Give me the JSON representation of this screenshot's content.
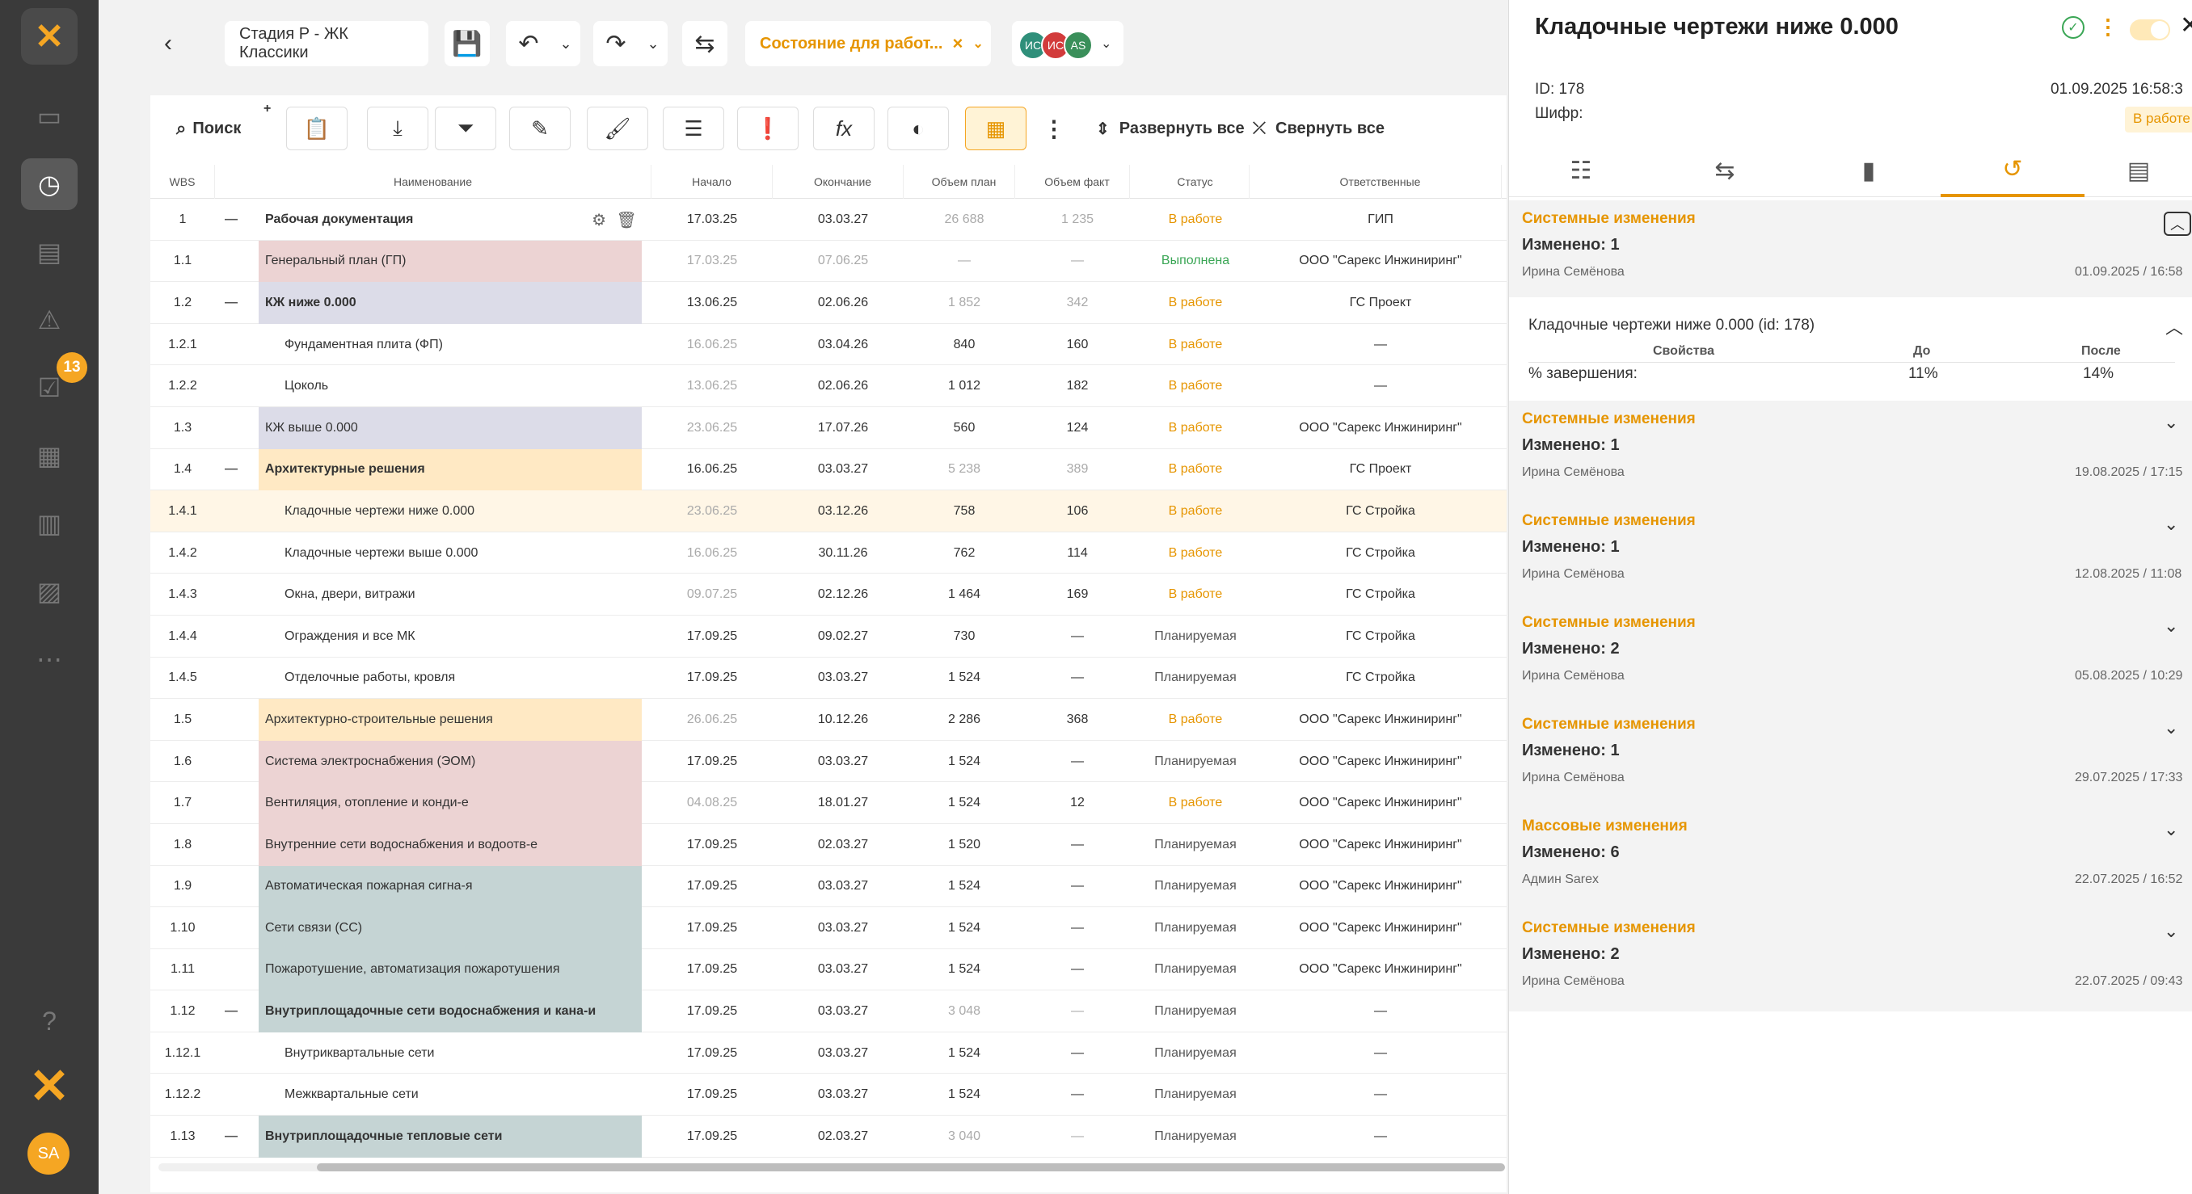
{
  "sidebar": {
    "badge": "13",
    "avatar": "SA"
  },
  "topbar": {
    "project_title": "Стадия Р - ЖК Классики",
    "state_label": "Состояние для работ...",
    "state_clear": "×",
    "avatars": [
      {
        "initials": "ИС",
        "color": "#2f8f7a"
      },
      {
        "initials": "ИС",
        "color": "#d23b3b"
      },
      {
        "initials": "AS",
        "color": "#3a8f5a"
      }
    ]
  },
  "toolbar": {
    "search_label": "Поиск",
    "expand_label": "Развернуть все",
    "collapse_label": "Свернуть все"
  },
  "table": {
    "headers": {
      "wbs": "WBS",
      "name": "Наименование",
      "start": "Начало",
      "end": "Окончание",
      "plan": "Объем план",
      "fact": "Объем факт",
      "status": "Статус",
      "resp": "Ответственные"
    },
    "rows": [
      {
        "wbs": "1",
        "toggle": "—",
        "name": "Рабочая документация",
        "start": "17.03.25",
        "end": "03.03.27",
        "plan": "26 688",
        "fact": "1 235",
        "status": "В работе",
        "resp": "ГИП"
      },
      {
        "wbs": "1.1",
        "toggle": "",
        "name": "Генеральный план (ГП)",
        "start": "17.03.25",
        "end": "07.06.25",
        "plan": "—",
        "fact": "—",
        "status": "Выполнена",
        "resp": "ООО \"Сарекс Инжиниринг\""
      },
      {
        "wbs": "1.2",
        "toggle": "—",
        "name": "КЖ ниже 0.000",
        "start": "13.06.25",
        "end": "02.06.26",
        "plan": "1 852",
        "fact": "342",
        "status": "В работе",
        "resp": "ГС Проект"
      },
      {
        "wbs": "1.2.1",
        "toggle": "",
        "name": "Фундаментная плита (ФП)",
        "start": "16.06.25",
        "end": "03.04.26",
        "plan": "840",
        "fact": "160",
        "status": "В работе",
        "resp": "—"
      },
      {
        "wbs": "1.2.2",
        "toggle": "",
        "name": "Цоколь",
        "start": "13.06.25",
        "end": "02.06.26",
        "plan": "1 012",
        "fact": "182",
        "status": "В работе",
        "resp": "—"
      },
      {
        "wbs": "1.3",
        "toggle": "",
        "name": "КЖ выше 0.000",
        "start": "23.06.25",
        "end": "17.07.26",
        "plan": "560",
        "fact": "124",
        "status": "В работе",
        "resp": "ООО \"Сарекс Инжиниринг\""
      },
      {
        "wbs": "1.4",
        "toggle": "—",
        "name": "Архитектурные решения",
        "start": "16.06.25",
        "end": "03.03.27",
        "plan": "5 238",
        "fact": "389",
        "status": "В работе",
        "resp": "ГС Проект"
      },
      {
        "wbs": "1.4.1",
        "toggle": "",
        "name": "Кладочные чертежи ниже 0.000",
        "start": "23.06.25",
        "end": "03.12.26",
        "plan": "758",
        "fact": "106",
        "status": "В работе",
        "resp": "ГС Стройка"
      },
      {
        "wbs": "1.4.2",
        "toggle": "",
        "name": "Кладочные чертежи выше 0.000",
        "start": "16.06.25",
        "end": "30.11.26",
        "plan": "762",
        "fact": "114",
        "status": "В работе",
        "resp": "ГС Стройка"
      },
      {
        "wbs": "1.4.3",
        "toggle": "",
        "name": "Окна, двери, витражи",
        "start": "09.07.25",
        "end": "02.12.26",
        "plan": "1 464",
        "fact": "169",
        "status": "В работе",
        "resp": "ГС Стройка"
      },
      {
        "wbs": "1.4.4",
        "toggle": "",
        "name": "Ограждения и все МК",
        "start": "17.09.25",
        "end": "09.02.27",
        "plan": "730",
        "fact": "—",
        "status": "Планируемая",
        "resp": "ГС Стройка"
      },
      {
        "wbs": "1.4.5",
        "toggle": "",
        "name": "Отделочные работы, кровля",
        "start": "17.09.25",
        "end": "03.03.27",
        "plan": "1 524",
        "fact": "—",
        "status": "Планируемая",
        "resp": "ГС Стройка"
      },
      {
        "wbs": "1.5",
        "toggle": "",
        "name": "Архитектурно-строительные решения",
        "start": "26.06.25",
        "end": "10.12.26",
        "plan": "2 286",
        "fact": "368",
        "status": "В работе",
        "resp": "ООО \"Сарекс Инжиниринг\""
      },
      {
        "wbs": "1.6",
        "toggle": "",
        "name": "Система электроснабжения (ЭОМ)",
        "start": "17.09.25",
        "end": "03.03.27",
        "plan": "1 524",
        "fact": "—",
        "status": "Планируемая",
        "resp": "ООО \"Сарекс Инжиниринг\""
      },
      {
        "wbs": "1.7",
        "toggle": "",
        "name": "Вентиляция, отопление и конди-е",
        "start": "04.08.25",
        "end": "18.01.27",
        "plan": "1 524",
        "fact": "12",
        "status": "В работе",
        "resp": "ООО \"Сарекс Инжиниринг\""
      },
      {
        "wbs": "1.8",
        "toggle": "",
        "name": "Внутренние сети водоснабжения и водоотв-е",
        "start": "17.09.25",
        "end": "02.03.27",
        "plan": "1 520",
        "fact": "—",
        "status": "Планируемая",
        "resp": "ООО \"Сарекс Инжиниринг\""
      },
      {
        "wbs": "1.9",
        "toggle": "",
        "name": "Автоматическая пожарная сигна-я",
        "start": "17.09.25",
        "end": "03.03.27",
        "plan": "1 524",
        "fact": "—",
        "status": "Планируемая",
        "resp": "ООО \"Сарекс Инжиниринг\""
      },
      {
        "wbs": "1.10",
        "toggle": "",
        "name": "Сети связи (СС)",
        "start": "17.09.25",
        "end": "03.03.27",
        "plan": "1 524",
        "fact": "—",
        "status": "Планируемая",
        "resp": "ООО \"Сарекс Инжиниринг\""
      },
      {
        "wbs": "1.11",
        "toggle": "",
        "name": "Пожаротушение, автоматизация пожаротушения",
        "start": "17.09.25",
        "end": "03.03.27",
        "plan": "1 524",
        "fact": "—",
        "status": "Планируемая",
        "resp": "ООО \"Сарекс Инжиниринг\""
      },
      {
        "wbs": "1.12",
        "toggle": "—",
        "name": "Внутриплощадочные сети водоснабжения и кана-и",
        "start": "17.09.25",
        "end": "03.03.27",
        "plan": "3 048",
        "fact": "—",
        "status": "Планируемая",
        "resp": "—"
      },
      {
        "wbs": "1.12.1",
        "toggle": "",
        "name": "Внутриквартальные сети",
        "start": "17.09.25",
        "end": "03.03.27",
        "plan": "1 524",
        "fact": "—",
        "status": "Планируемая",
        "resp": "—"
      },
      {
        "wbs": "1.12.2",
        "toggle": "",
        "name": "Межквартальные сети",
        "start": "17.09.25",
        "end": "03.03.27",
        "plan": "1 524",
        "fact": "—",
        "status": "Планируемая",
        "resp": "—"
      },
      {
        "wbs": "1.13",
        "toggle": "—",
        "name": "Внутриплощадочные тепловые сети",
        "start": "17.09.25",
        "end": "02.03.27",
        "plan": "3 040",
        "fact": "—",
        "status": "Планируемая",
        "resp": "—"
      }
    ]
  },
  "colors": {
    "accent": "#f5a623",
    "row_pink": "#ecd3d3",
    "row_lavender": "#dcdce8",
    "row_yellow": "#ffe9c4",
    "row_teal": "#c5d4d4",
    "selected_row": "#fff6e6"
  },
  "panel": {
    "title": "Кладочные чертежи ниже 0.000",
    "id_label": "ID: 178",
    "code_label": "Шифр:",
    "datetime": "01.09.2025 16:58:3",
    "status_badge": "В работе",
    "history": [
      {
        "type": "Системные изменения",
        "count": "Изменено: 1",
        "user": "Ирина Семёнова",
        "date": "01.09.2025 / 16:58",
        "detail": {
          "title": "Кладочные чертежи ниже 0.000 (id: 178)",
          "col_prop": "Свойства",
          "col_before": "До",
          "col_after": "После",
          "prop": "% завершения:",
          "before": "11%",
          "after": "14%"
        }
      },
      {
        "type": "Системные изменения",
        "count": "Изменено: 1",
        "user": "Ирина Семёнова",
        "date": "19.08.2025 / 17:15"
      },
      {
        "type": "Системные изменения",
        "count": "Изменено: 1",
        "user": "Ирина Семёнова",
        "date": "12.08.2025 / 11:08"
      },
      {
        "type": "Системные изменения",
        "count": "Изменено: 2",
        "user": "Ирина Семёнова",
        "date": "05.08.2025 / 10:29"
      },
      {
        "type": "Системные изменения",
        "count": "Изменено: 1",
        "user": "Ирина Семёнова",
        "date": "29.07.2025 / 17:33"
      },
      {
        "type": "Массовые изменения",
        "count": "Изменено: 6",
        "user": "Админ Sarex",
        "date": "22.07.2025 / 16:52"
      },
      {
        "type": "Системные изменения",
        "count": "Изменено: 2",
        "user": "Ирина Семёнова",
        "date": "22.07.2025 / 09:43"
      }
    ]
  }
}
